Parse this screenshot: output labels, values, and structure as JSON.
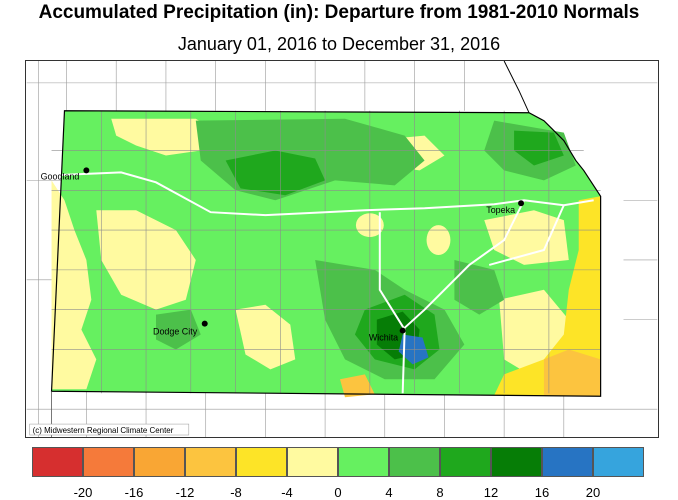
{
  "title": "Accumulated Precipitation (in): Departure from 1981-2010 Normals",
  "subtitle": "January 01, 2016 to December 31, 2016",
  "cities": [
    {
      "name": "Goodland"
    },
    {
      "name": "Topeka"
    },
    {
      "name": "Dodge City"
    },
    {
      "name": "Wichita"
    }
  ],
  "credit": "(c) Midwestern Regional Climate Center",
  "legend": {
    "colors": [
      "#d62f2f",
      "#f57a3a",
      "#f9a634",
      "#fcc43f",
      "#fde427",
      "#fffaa0",
      "#66f060",
      "#4cc04a",
      "#1fa81d",
      "#067d06",
      "#2774c3",
      "#36a4dd"
    ],
    "ticks": [
      "-20",
      "-16",
      "-12",
      "-8",
      "-4",
      "0",
      "4",
      "8",
      "12",
      "16",
      "20"
    ]
  },
  "map_colors": {
    "background": "#ffffff",
    "light_green": "#66f060",
    "mid_green": "#4cc04a",
    "dark_green": "#1fa81d",
    "forest": "#067d06",
    "pale_yellow": "#fffaa0",
    "yellow": "#fde427",
    "orange": "#fcc43f",
    "blue": "#2774c3"
  }
}
